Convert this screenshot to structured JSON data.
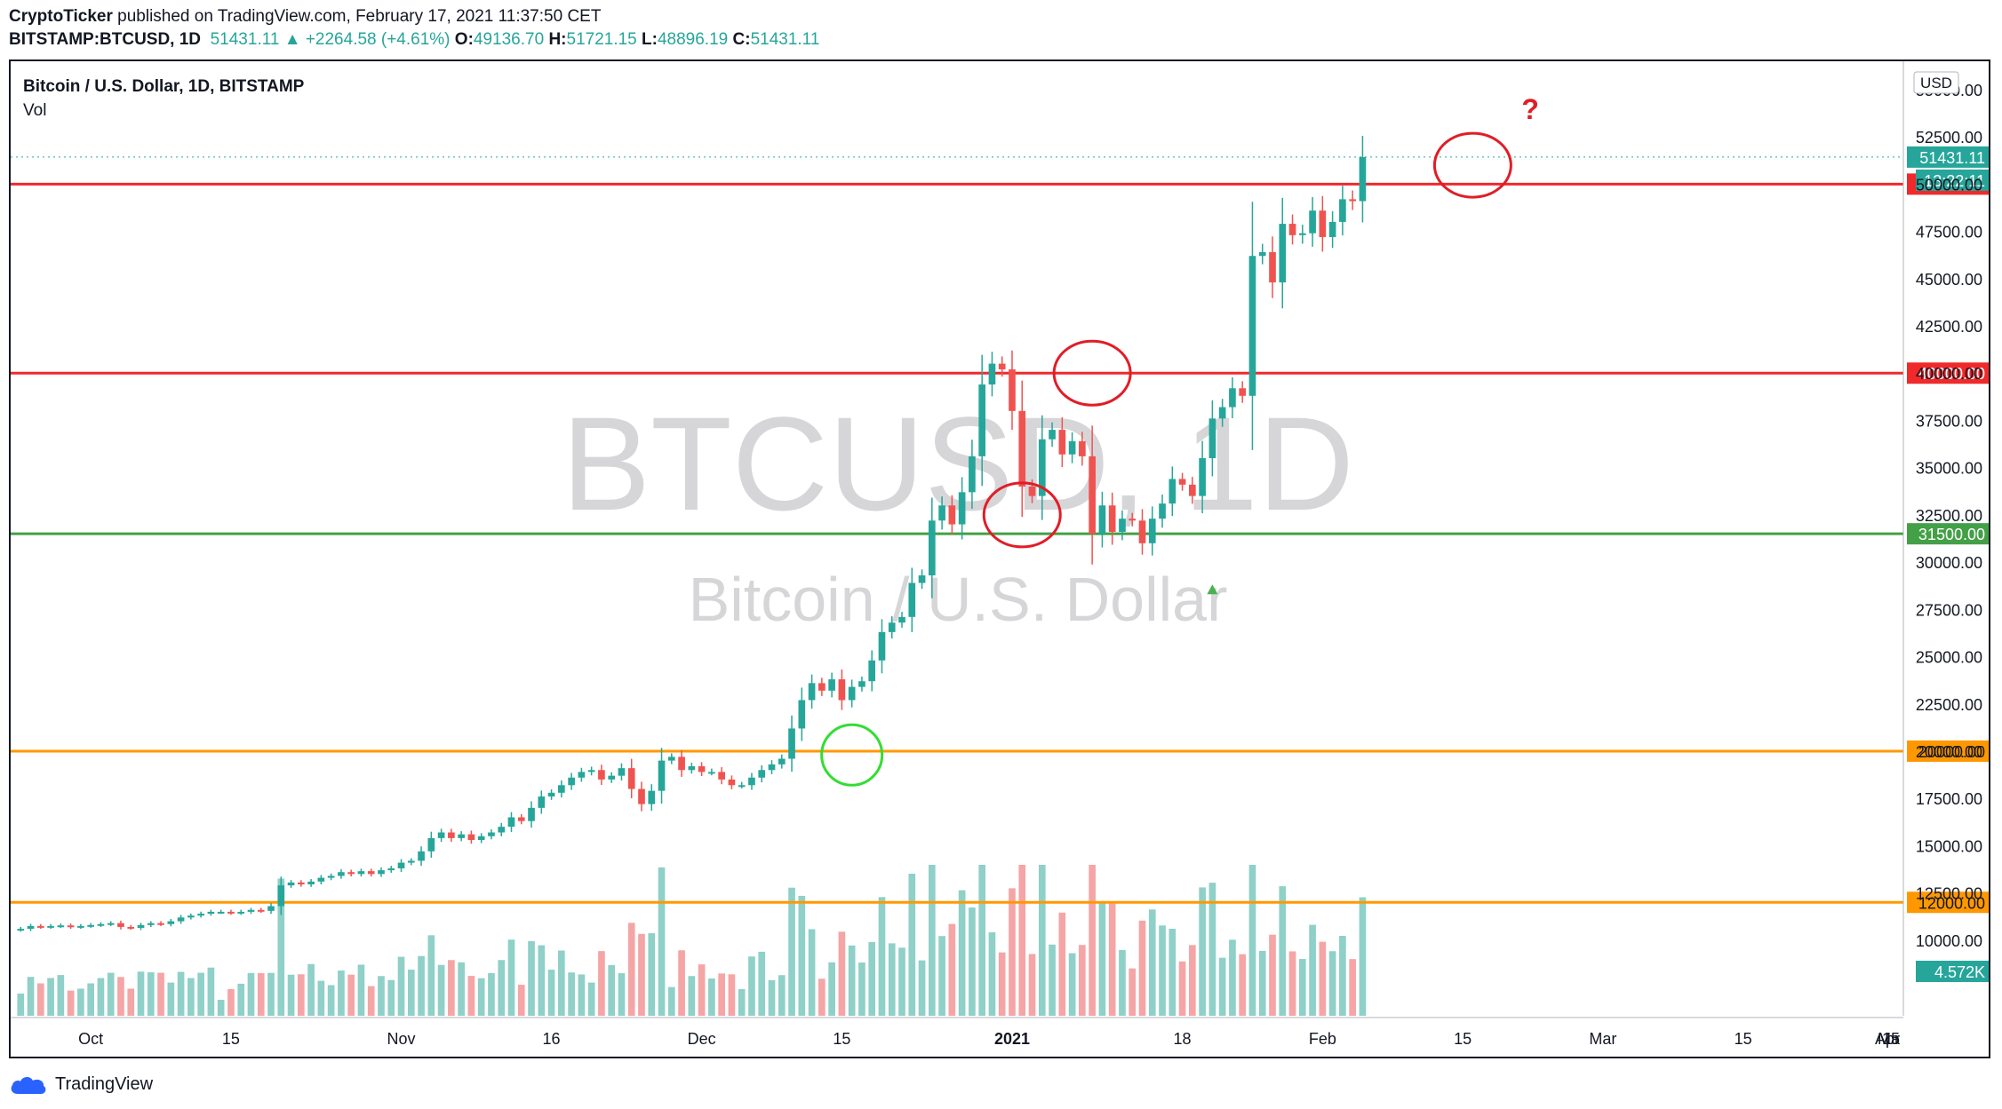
{
  "header": {
    "publisher": "CryptoTicker",
    "published_text": "published on TradingView.com, February 17, 2021 11:37:50 CET",
    "symbol": "BITSTAMP:BTCUSD, 1D",
    "last": "51431.11",
    "change_arrow": "▲",
    "change": "+2264.58 (+4.61%)",
    "o_label": "O:",
    "o": "49136.70",
    "h_label": "H:",
    "h": "51721.15",
    "l_label": "L:",
    "l": "48896.19",
    "c_label": "C:",
    "c": "51431.11"
  },
  "footer": {
    "brand": "TradingView",
    "logo_icon": "tradingview-cloud-icon"
  },
  "chart_data": {
    "type": "candlestick",
    "title": "Bitcoin / U.S. Dollar, 1D, BITSTAMP",
    "volume_label": "Vol",
    "watermark_symbol": "BTCUSD, 1D",
    "watermark_name": "Bitcoin / U.S. Dollar",
    "currency": "USD",
    "ylim": [
      6000,
      56500
    ],
    "y_ticks": [
      "10000.00",
      "12500.00",
      "15000.00",
      "17500.00",
      "20000.00",
      "22500.00",
      "25000.00",
      "27500.00",
      "30000.00",
      "32500.00",
      "35000.00",
      "37500.00",
      "40000.00",
      "42500.00",
      "45000.00",
      "47500.00",
      "50000.00",
      "52500.00",
      "55000.00"
    ],
    "x_start": "2020-09-23",
    "x_end": "2021-03-31",
    "x_ticks": [
      {
        "date": "2020-10-01",
        "label": "Oct"
      },
      {
        "date": "2020-10-15",
        "label": "15"
      },
      {
        "date": "2020-11-01",
        "label": "Nov"
      },
      {
        "date": "2020-11-16",
        "label": "16"
      },
      {
        "date": "2020-12-01",
        "label": "Dec"
      },
      {
        "date": "2020-12-15",
        "label": "15"
      },
      {
        "date": "2021-01-01",
        "label": "2021"
      },
      {
        "date": "2021-01-18",
        "label": "18"
      },
      {
        "date": "2021-02-01",
        "label": "Feb"
      },
      {
        "date": "2021-02-15",
        "label": "15"
      },
      {
        "date": "2021-03-01",
        "label": "Mar"
      },
      {
        "date": "2021-03-15",
        "label": "15"
      },
      {
        "date": "2021-04-01",
        "label": "Apr"
      },
      {
        "date": "2021-04-15",
        "label": "15"
      },
      {
        "date": "2021-05-01",
        "label": "Ma"
      }
    ],
    "colors": {
      "up": "#26a69a",
      "down": "#ef5350",
      "vol_up": "#8fd0c8",
      "vol_down": "#f5a5a5",
      "red_line": "#f0292b",
      "green_line": "#43a047",
      "orange_line": "#ff9800",
      "circle_red": "#e11d27",
      "circle_green": "#33dd33"
    },
    "horizontal_levels": [
      {
        "value": 50000,
        "label": "50000.00",
        "color": "red"
      },
      {
        "value": 40000,
        "label": "40000.00",
        "color": "red"
      },
      {
        "value": 31500,
        "label": "31500.00",
        "color": "green"
      },
      {
        "value": 20000,
        "label": "20000.00",
        "color": "orange"
      },
      {
        "value": 12000,
        "label": "12000.00",
        "color": "orange"
      }
    ],
    "last_price": {
      "value": 51431.11,
      "label": "51431.11",
      "countdown": "13:22:11"
    },
    "volume_last": "4.572K",
    "annotation_text": "?",
    "circles": [
      {
        "date": "2021-01-02",
        "price": 32500,
        "color": "red"
      },
      {
        "date": "2021-01-09",
        "price": 40000,
        "color": "red"
      },
      {
        "date": "2021-02-16",
        "price": 51000,
        "color": "red"
      },
      {
        "date": "2020-12-16",
        "price": 19800,
        "color": "green"
      }
    ],
    "closes": [
      10600,
      10750,
      10700,
      10750,
      10780,
      10700,
      10750,
      10800,
      10850,
      10900,
      10700,
      10650,
      10800,
      10900,
      10850,
      11000,
      11200,
      11300,
      11400,
      11500,
      11500,
      11450,
      11500,
      11600,
      11550,
      11800,
      12900,
      13050,
      12950,
      13100,
      13300,
      13400,
      13600,
      13500,
      13650,
      13500,
      13700,
      13800,
      14100,
      14200,
      14700,
      15400,
      15700,
      15400,
      15600,
      15300,
      15500,
      15700,
      16000,
      16500,
      16300,
      17000,
      17600,
      17800,
      18200,
      18600,
      18900,
      19000,
      18500,
      18700,
      19100,
      18000,
      17200,
      17900,
      19500,
      19700,
      19000,
      19200,
      18900,
      18900,
      18500,
      18200,
      18200,
      18600,
      19000,
      19300,
      19600,
      21200,
      22700,
      23600,
      23200,
      23800,
      22700,
      23400,
      23700,
      24800,
      26300,
      26800,
      27100,
      28900,
      29300,
      32200,
      33000,
      32000,
      33700,
      35600,
      39400,
      40500,
      40200,
      38000,
      34000,
      33500,
      36500,
      37000,
      35700,
      36400,
      35600,
      31500,
      33000,
      31600,
      32300,
      32200,
      31000,
      32300,
      33100,
      34400,
      34100,
      33500,
      35500,
      37600,
      38200,
      39200,
      38800,
      46200,
      46400,
      44800,
      47900,
      47300,
      47400,
      48600,
      47200,
      48000,
      49200,
      49100,
      51431
    ]
  }
}
